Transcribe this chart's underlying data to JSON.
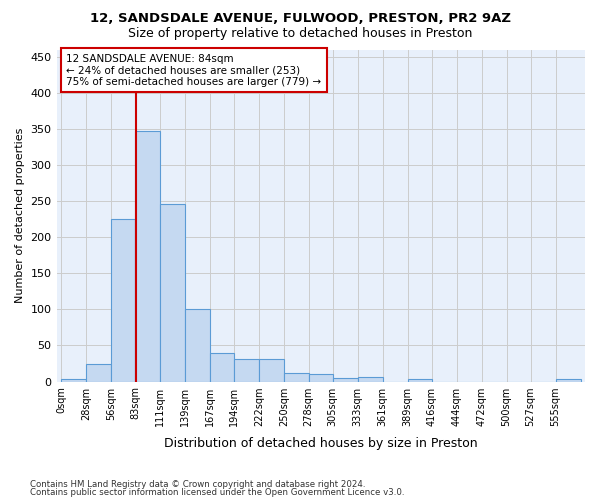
{
  "title_line1": "12, SANDSDALE AVENUE, FULWOOD, PRESTON, PR2 9AZ",
  "title_line2": "Size of property relative to detached houses in Preston",
  "xlabel": "Distribution of detached houses by size in Preston",
  "ylabel": "Number of detached properties",
  "bar_color": "#c5d9f1",
  "bar_edge_color": "#5b9bd5",
  "background_color": "#ffffff",
  "grid_color": "#cccccc",
  "bin_labels": [
    "0sqm",
    "28sqm",
    "56sqm",
    "83sqm",
    "111sqm",
    "139sqm",
    "167sqm",
    "194sqm",
    "222sqm",
    "250sqm",
    "278sqm",
    "305sqm",
    "333sqm",
    "361sqm",
    "389sqm",
    "416sqm",
    "444sqm",
    "472sqm",
    "500sqm",
    "527sqm",
    "555sqm"
  ],
  "bar_values": [
    3,
    25,
    225,
    348,
    246,
    100,
    40,
    31,
    31,
    12,
    10,
    5,
    6,
    0,
    4,
    0,
    0,
    0,
    0,
    0,
    3
  ],
  "ylim": [
    0,
    460
  ],
  "yticks": [
    0,
    50,
    100,
    150,
    200,
    250,
    300,
    350,
    400,
    450
  ],
  "bin_edges": [
    0,
    28,
    56,
    83,
    111,
    139,
    167,
    194,
    222,
    250,
    278,
    305,
    333,
    361,
    389,
    416,
    444,
    472,
    500,
    527,
    555,
    583
  ],
  "property_line_x": 84,
  "annotation_text_line1": "12 SANDSDALE AVENUE: 84sqm",
  "annotation_text_line2": "← 24% of detached houses are smaller (253)",
  "annotation_text_line3": "75% of semi-detached houses are larger (779) →",
  "annotation_box_color": "#ffffff",
  "annotation_box_edge": "#cc0000",
  "vline_color": "#cc0000",
  "footnote_line1": "Contains HM Land Registry data © Crown copyright and database right 2024.",
  "footnote_line2": "Contains public sector information licensed under the Open Government Licence v3.0."
}
